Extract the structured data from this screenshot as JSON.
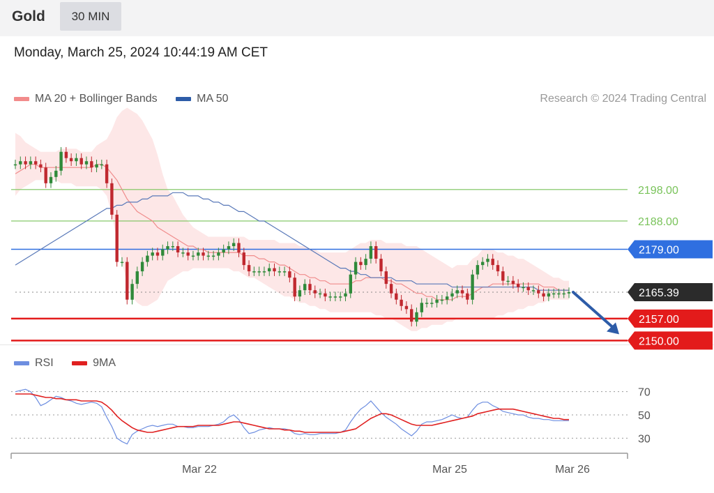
{
  "header": {
    "instrument": "Gold",
    "timeframe": "30 MIN",
    "timestamp": "Monday, March 25, 2024 10:44:19 AM CET"
  },
  "legend": {
    "ma20": {
      "label": "MA 20 + Bollinger Bands",
      "color": "#f28b8b"
    },
    "ma50": {
      "label": "MA 50",
      "color": "#2d5ca8"
    }
  },
  "credit": "Research © 2024 Trading Central",
  "rsi_legend": {
    "rsi": {
      "label": "RSI",
      "color": "#6d8ee0"
    },
    "ma9": {
      "label": "9MA",
      "color": "#e02020"
    }
  },
  "chart_data": [
    {
      "type": "candlestick",
      "ylim": [
        2143,
        2225
      ],
      "levels": [
        {
          "value": 2198.0,
          "label": "2198.00",
          "kind": "resistance",
          "color": "#79c35a"
        },
        {
          "value": 2188.0,
          "label": "2188.00",
          "kind": "resistance",
          "color": "#79c35a"
        },
        {
          "value": 2179.0,
          "label": "2179.00",
          "kind": "pivot",
          "color": "#2f6fe0"
        },
        {
          "value": 2165.39,
          "label": "2165.39",
          "kind": "last-price",
          "color": "#2b2b2b"
        },
        {
          "value": 2157.0,
          "label": "2157.00",
          "kind": "support",
          "color": "#e31b1b"
        },
        {
          "value": 2150.0,
          "label": "2150.00",
          "kind": "support",
          "color": "#e31b1b"
        }
      ],
      "close": [
        2206,
        2207,
        2206,
        2207,
        2206,
        2205,
        2200,
        2202,
        2204,
        2210,
        2208,
        2207,
        2208,
        2206,
        2207,
        2205,
        2206,
        2206,
        2200,
        2190,
        2175,
        2175,
        2163,
        2168,
        2172,
        2175,
        2177,
        2178,
        2177,
        2179,
        2180,
        2180,
        2178,
        2178,
        2177,
        2177,
        2178,
        2177,
        2177,
        2177,
        2178,
        2179,
        2180,
        2181,
        2178,
        2174,
        2172,
        2172,
        2172,
        2172,
        2173,
        2172,
        2172,
        2172,
        2170,
        2164,
        2166,
        2168,
        2166,
        2165,
        2165,
        2164,
        2164,
        2164,
        2164,
        2165,
        2171,
        2175,
        2174,
        2176,
        2180,
        2176,
        2172,
        2168,
        2165,
        2163,
        2161,
        2160,
        2156,
        2159,
        2162,
        2162,
        2162,
        2163,
        2163,
        2164,
        2165,
        2166,
        2165,
        2163,
        2171,
        2174,
        2175,
        2176,
        2174,
        2172,
        2169,
        2169,
        2168,
        2167,
        2167,
        2166,
        2166,
        2165,
        2164,
        2165,
        2165,
        2165,
        2165,
        2165.39
      ],
      "ma20": [
        2203,
        2204,
        2205,
        2206,
        2206,
        2205,
        2205,
        2205,
        2205,
        2205,
        2205,
        2205,
        2205,
        2205,
        2205,
        2205,
        2206,
        2206,
        2205,
        2203,
        2201,
        2198,
        2195,
        2193,
        2191,
        2190,
        2189,
        2188,
        2186,
        2185,
        2184,
        2183,
        2182,
        2181,
        2180,
        2180,
        2179,
        2179,
        2178,
        2178,
        2178,
        2178,
        2178,
        2178,
        2178,
        2177,
        2177,
        2177,
        2176,
        2176,
        2175,
        2175,
        2174,
        2174,
        2173,
        2172,
        2171,
        2171,
        2170,
        2170,
        2169,
        2169,
        2168,
        2168,
        2168,
        2168,
        2168,
        2169,
        2169,
        2170,
        2170,
        2170,
        2170,
        2169,
        2169,
        2168,
        2168,
        2167,
        2166,
        2165,
        2165,
        2164,
        2164,
        2163,
        2163,
        2163,
        2163,
        2164,
        2164,
        2164,
        2165,
        2166,
        2167,
        2167,
        2168,
        2168,
        2168,
        2168,
        2168,
        2168,
        2168,
        2168,
        2168,
        2168,
        2167,
        2167,
        2167,
        2166,
        2166,
        2166
      ],
      "ma50": [
        2174,
        2175,
        2176,
        2177,
        2178,
        2179,
        2180,
        2181,
        2182,
        2183,
        2184,
        2185,
        2186,
        2187,
        2188,
        2189,
        2190,
        2191,
        2192,
        2192,
        2193,
        2193,
        2194,
        2194,
        2194,
        2195,
        2195,
        2196,
        2196,
        2196,
        2196,
        2197,
        2197,
        2197,
        2196,
        2196,
        2196,
        2195,
        2195,
        2194,
        2194,
        2193,
        2193,
        2192,
        2191,
        2191,
        2190,
        2189,
        2188,
        2188,
        2187,
        2186,
        2185,
        2184,
        2183,
        2182,
        2181,
        2180,
        2179,
        2178,
        2177,
        2176,
        2175,
        2174,
        2173,
        2173,
        2172,
        2172,
        2171,
        2171,
        2170,
        2170,
        2170,
        2170,
        2170,
        2169,
        2169,
        2169,
        2169,
        2168,
        2168,
        2168,
        2168,
        2168,
        2168,
        2168,
        2167,
        2167,
        2167,
        2167,
        2167,
        2167,
        2167,
        2167,
        2167,
        2167,
        2167,
        2167,
        2167,
        2167,
        2167,
        2167,
        2167,
        2166,
        2166,
        2166,
        2166,
        2166,
        2166,
        2166
      ],
      "bb_upper": [
        2216,
        2215,
        2213,
        2212,
        2211,
        2210,
        2210,
        2210,
        2210,
        2211,
        2211,
        2211,
        2211,
        2210,
        2210,
        2210,
        2212,
        2213,
        2214,
        2217,
        2221,
        2223,
        2224,
        2223,
        2222,
        2220,
        2217,
        2214,
        2209,
        2203,
        2198,
        2196,
        2193,
        2190,
        2188,
        2186,
        2185,
        2184,
        2183,
        2183,
        2183,
        2183,
        2183,
        2183,
        2183,
        2183,
        2182,
        2182,
        2182,
        2182,
        2182,
        2182,
        2181,
        2181,
        2181,
        2181,
        2180,
        2180,
        2179,
        2179,
        2178,
        2178,
        2178,
        2178,
        2178,
        2178,
        2179,
        2180,
        2181,
        2181,
        2182,
        2182,
        2182,
        2181,
        2181,
        2181,
        2181,
        2180,
        2180,
        2180,
        2179,
        2178,
        2177,
        2176,
        2175,
        2174,
        2173,
        2174,
        2174,
        2174,
        2176,
        2177,
        2179,
        2179,
        2179,
        2178,
        2178,
        2177,
        2177,
        2176,
        2176,
        2175,
        2174,
        2173,
        2172,
        2171,
        2170,
        2170,
        2169,
        2169
      ],
      "bb_lower": [
        2196,
        2198,
        2199,
        2200,
        2201,
        2201,
        2201,
        2201,
        2201,
        2200,
        2200,
        2200,
        2199,
        2199,
        2199,
        2199,
        2199,
        2198,
        2196,
        2190,
        2182,
        2175,
        2168,
        2164,
        2162,
        2161,
        2161,
        2162,
        2163,
        2166,
        2169,
        2170,
        2171,
        2172,
        2172,
        2173,
        2173,
        2173,
        2173,
        2173,
        2173,
        2173,
        2173,
        2172,
        2172,
        2171,
        2170,
        2170,
        2169,
        2168,
        2167,
        2166,
        2165,
        2164,
        2164,
        2163,
        2162,
        2162,
        2161,
        2161,
        2160,
        2160,
        2159,
        2159,
        2159,
        2159,
        2159,
        2159,
        2159,
        2159,
        2159,
        2158,
        2158,
        2157,
        2157,
        2156,
        2155,
        2154,
        2153,
        2153,
        2154,
        2154,
        2155,
        2155,
        2155,
        2156,
        2156,
        2157,
        2157,
        2157,
        2157,
        2157,
        2157,
        2157,
        2157,
        2158,
        2158,
        2159,
        2159,
        2160,
        2160,
        2161,
        2161,
        2162,
        2162,
        2163,
        2163,
        2163,
        2163,
        2163
      ],
      "forecast_arrow": {
        "from_value": 2165.39,
        "to_value": 2152
      }
    },
    {
      "type": "line",
      "title": "RSI",
      "ylim": [
        20,
        80
      ],
      "yticks": [
        30,
        50,
        70
      ],
      "x_tick_labels": [
        "Mar 22",
        "Mar 25",
        "Mar 26"
      ],
      "series": [
        {
          "name": "RSI",
          "color": "#6d8ee0",
          "values": [
            70,
            71,
            72,
            70,
            65,
            58,
            60,
            63,
            66,
            65,
            63,
            62,
            60,
            59,
            60,
            61,
            60,
            57,
            48,
            40,
            30,
            27,
            25,
            33,
            36,
            38,
            40,
            41,
            40,
            41,
            42,
            42,
            40,
            40,
            39,
            39,
            40,
            40,
            40,
            41,
            42,
            44,
            48,
            50,
            46,
            39,
            34,
            35,
            37,
            38,
            39,
            38,
            38,
            38,
            37,
            34,
            33,
            34,
            33,
            33,
            34,
            34,
            34,
            34,
            35,
            37,
            44,
            50,
            55,
            58,
            62,
            57,
            52,
            48,
            45,
            42,
            38,
            35,
            32,
            36,
            42,
            44,
            44,
            45,
            46,
            48,
            50,
            48,
            47,
            48,
            54,
            59,
            61,
            61,
            58,
            56,
            53,
            52,
            51,
            50,
            50,
            48,
            47,
            47,
            46,
            46,
            45,
            45,
            45,
            45
          ]
        },
        {
          "name": "9MA",
          "color": "#e02020",
          "values": [
            68,
            68,
            68,
            68,
            67,
            66,
            65,
            65,
            64,
            64,
            63,
            63,
            63,
            62,
            62,
            62,
            62,
            61,
            58,
            54,
            49,
            45,
            42,
            39,
            37,
            36,
            35,
            35,
            36,
            37,
            38,
            39,
            40,
            40,
            40,
            40,
            41,
            41,
            41,
            41,
            41,
            42,
            43,
            44,
            44,
            43,
            42,
            41,
            40,
            39,
            38,
            38,
            38,
            37,
            37,
            36,
            36,
            35,
            35,
            35,
            35,
            35,
            35,
            35,
            35,
            36,
            37,
            38,
            41,
            44,
            47,
            49,
            51,
            51,
            50,
            48,
            46,
            44,
            42,
            41,
            41,
            41,
            41,
            42,
            43,
            44,
            45,
            46,
            47,
            48,
            49,
            51,
            52,
            53,
            54,
            55,
            55,
            55,
            55,
            54,
            53,
            52,
            51,
            50,
            49,
            48,
            47,
            47,
            46,
            46
          ]
        }
      ]
    }
  ]
}
